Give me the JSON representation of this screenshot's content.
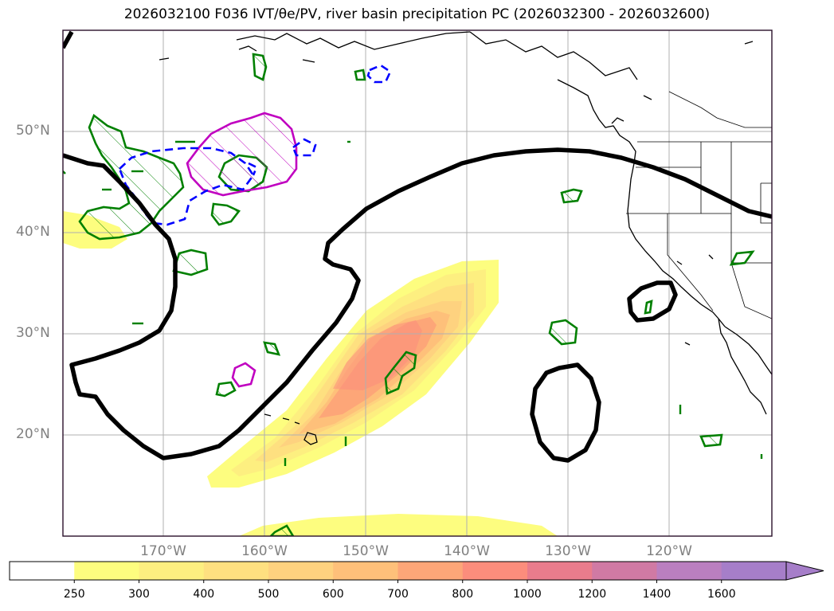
{
  "title": "2026032100 F036 IVT/θe/PV, river basin precipitation PC (2026032300 - 2026032600)",
  "map": {
    "lat_labels": [
      "50°N",
      "40°N",
      "30°N",
      "20°N"
    ],
    "lon_labels": [
      "170°W",
      "160°W",
      "150°W",
      "140°W",
      "130°W",
      "120°W"
    ],
    "lat_range": [
      10,
      60
    ],
    "lon_range": [
      -180,
      -110
    ]
  },
  "colorbar": {
    "ticks": [
      "250",
      "300",
      "400",
      "500",
      "600",
      "700",
      "800",
      "1000",
      "1200",
      "1400",
      "1600"
    ],
    "colors": [
      "#ffffff",
      "#fdfd7f",
      "#fdef80",
      "#fee080",
      "#fed27f",
      "#fec07a",
      "#fda678",
      "#fc8d7c",
      "#e97c8c",
      "#d07aa4",
      "#ba7fc0",
      "#a67ec9"
    ],
    "extend": "max"
  },
  "legend_colors": {
    "theta_e_contour": "#000000",
    "pv_contour": "#008000",
    "pv_negative": "#0000ff",
    "highlight": "#c000c0"
  }
}
